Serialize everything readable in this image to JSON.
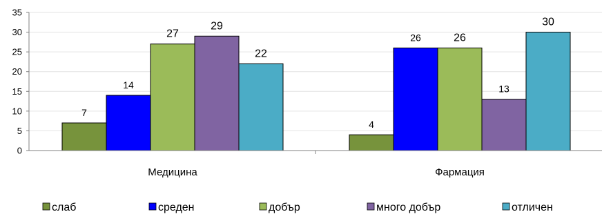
{
  "chart_data": {
    "type": "bar",
    "categories": [
      "Медицина",
      "Фармация"
    ],
    "series": [
      {
        "name": "слаб",
        "values": [
          7,
          4
        ],
        "color": "#77933c"
      },
      {
        "name": "среден",
        "values": [
          14,
          26
        ],
        "color": "#0000ff"
      },
      {
        "name": "добър",
        "values": [
          27,
          26
        ],
        "color": "#9bbb59"
      },
      {
        "name": "много добър",
        "values": [
          29,
          13
        ],
        "color": "#8064a2"
      },
      {
        "name": "отличен",
        "values": [
          22,
          30
        ],
        "color": "#4bacc6"
      }
    ],
    "data_labels": [
      [
        "7",
        "4"
      ],
      [
        "14",
        "26"
      ],
      [
        "27",
        "26"
      ],
      [
        "29",
        "13"
      ],
      [
        "22",
        "30"
      ]
    ],
    "y_ticks": [
      "0",
      "5",
      "10",
      "15",
      "20",
      "25",
      "30",
      "35"
    ],
    "ylim": [
      0,
      35
    ],
    "grid": true,
    "legend_position": "bottom",
    "title": "",
    "xlabel": "",
    "ylabel": ""
  }
}
